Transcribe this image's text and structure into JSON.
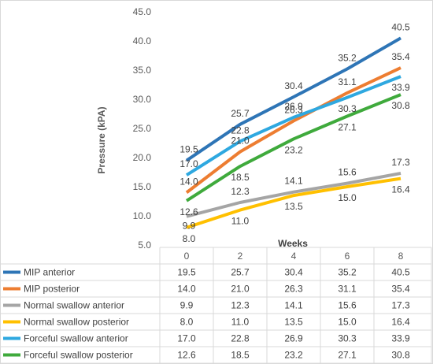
{
  "chart_data": {
    "type": "line",
    "xlabel": "Weeks",
    "ylabel": "Pressure (kPA)",
    "ylim": [
      5.0,
      45.0
    ],
    "yticks": [
      "5.0",
      "10.0",
      "15.0",
      "20.0",
      "25.0",
      "30.0",
      "35.0",
      "40.0",
      "45.0"
    ],
    "categories": [
      "0",
      "2",
      "4",
      "6",
      "8"
    ],
    "grid": false,
    "legend": "data-table-below",
    "series": [
      {
        "name": "MIP anterior",
        "color": "#2e75b6",
        "values": [
          19.5,
          25.7,
          30.4,
          35.2,
          40.5
        ],
        "labels": [
          "19.5",
          "25.7",
          "30.4",
          "35.2",
          "40.5"
        ]
      },
      {
        "name": "MIP posterior",
        "color": "#ed7d31",
        "values": [
          14.0,
          21.0,
          26.3,
          31.1,
          35.4
        ],
        "labels": [
          "14.0",
          "21.0",
          "26.3",
          "31.1",
          "35.4"
        ]
      },
      {
        "name": "Normal swallow anterior",
        "color": "#a5a5a5",
        "values": [
          9.9,
          12.3,
          14.1,
          15.6,
          17.3
        ],
        "labels": [
          "9.9",
          "12.3",
          "14.1",
          "15.6",
          "17.3"
        ]
      },
      {
        "name": "Normal swallow posterior",
        "color": "#ffc000",
        "values": [
          8.0,
          11.0,
          13.5,
          15.0,
          16.4
        ],
        "labels": [
          "8.0",
          "11.0",
          "13.5",
          "15.0",
          "16.4"
        ]
      },
      {
        "name": "Forceful swallow anterior",
        "color": "#2ea8e0",
        "values": [
          17.0,
          22.8,
          26.9,
          30.3,
          33.9
        ],
        "labels": [
          "17.0",
          "22.8",
          "26.9",
          "30.3",
          "33.9"
        ]
      },
      {
        "name": "Forceful swallow posterior",
        "color": "#3faa3c",
        "values": [
          12.6,
          18.5,
          23.2,
          27.1,
          30.8
        ],
        "labels": [
          "12.6",
          "18.5",
          "23.2",
          "27.1",
          "30.8"
        ]
      }
    ]
  }
}
